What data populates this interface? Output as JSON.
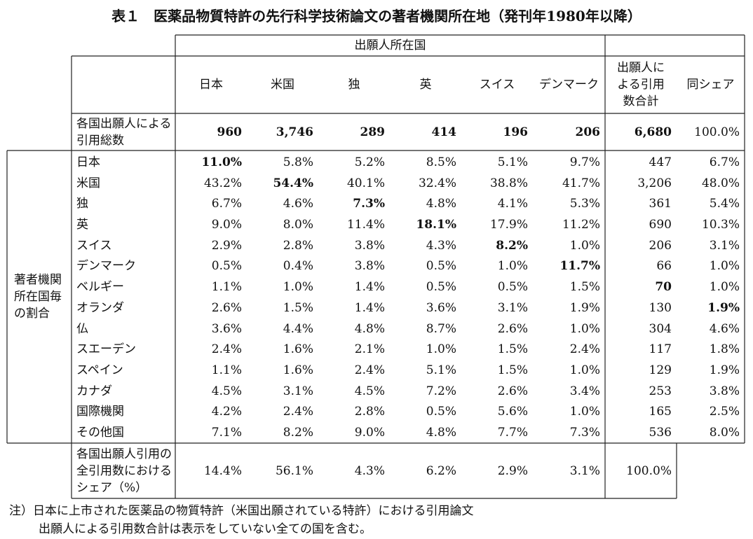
{
  "title": "表１　医薬品物質特許の先行科学技術論文の著者機関所在地（発刊年1980年以降）",
  "table": {
    "group_header": "出願人所在国",
    "columns": [
      "日本",
      "米国",
      "独",
      "英",
      "スイス",
      "デンマーク",
      "出願人による引用数合計",
      "同シェア"
    ],
    "total_row": {
      "label": "各国出願人による引用総数",
      "cells": [
        "960",
        "3,746",
        "289",
        "414",
        "196",
        "206",
        "6,680",
        "100.0%"
      ]
    },
    "row_group_label": "著者機関所在国毎の割合",
    "rows": [
      {
        "label": "日本",
        "cells": [
          "11.0%",
          "5.8%",
          "5.2%",
          "8.5%",
          "5.1%",
          "9.7%",
          "447",
          "6.7%"
        ]
      },
      {
        "label": "米国",
        "cells": [
          "43.2%",
          "54.4%",
          "40.1%",
          "32.4%",
          "38.8%",
          "41.7%",
          "3,206",
          "48.0%"
        ]
      },
      {
        "label": "独",
        "cells": [
          "6.7%",
          "4.6%",
          "7.3%",
          "4.8%",
          "4.1%",
          "5.3%",
          "361",
          "5.4%"
        ]
      },
      {
        "label": "英",
        "cells": [
          "9.0%",
          "8.0%",
          "11.4%",
          "18.1%",
          "17.9%",
          "11.2%",
          "690",
          "10.3%"
        ]
      },
      {
        "label": "スイス",
        "cells": [
          "2.9%",
          "2.8%",
          "3.8%",
          "4.3%",
          "8.2%",
          "1.0%",
          "206",
          "3.1%"
        ]
      },
      {
        "label": "デンマーク",
        "cells": [
          "0.5%",
          "0.4%",
          "3.8%",
          "0.5%",
          "1.0%",
          "11.7%",
          "66",
          "1.0%"
        ]
      },
      {
        "label": "ベルギー",
        "cells": [
          "1.1%",
          "1.0%",
          "1.4%",
          "0.5%",
          "0.5%",
          "1.5%",
          "70",
          "1.0%"
        ]
      },
      {
        "label": "オランダ",
        "cells": [
          "2.6%",
          "1.5%",
          "1.4%",
          "3.6%",
          "3.1%",
          "1.9%",
          "130",
          "1.9%"
        ]
      },
      {
        "label": "仏",
        "cells": [
          "3.6%",
          "4.4%",
          "4.8%",
          "8.7%",
          "2.6%",
          "1.0%",
          "304",
          "4.6%"
        ]
      },
      {
        "label": "スエーデン",
        "cells": [
          "2.4%",
          "1.6%",
          "2.1%",
          "1.0%",
          "1.5%",
          "2.4%",
          "117",
          "1.8%"
        ]
      },
      {
        "label": "スペイン",
        "cells": [
          "1.1%",
          "1.6%",
          "2.4%",
          "5.1%",
          "1.5%",
          "1.0%",
          "129",
          "1.9%"
        ]
      },
      {
        "label": "カナダ",
        "cells": [
          "4.5%",
          "3.1%",
          "4.5%",
          "7.2%",
          "2.6%",
          "3.4%",
          "253",
          "3.8%"
        ]
      },
      {
        "label": "国際機関",
        "cells": [
          "4.2%",
          "2.4%",
          "2.8%",
          "0.5%",
          "5.6%",
          "1.0%",
          "165",
          "2.5%"
        ]
      },
      {
        "label": "その他国",
        "cells": [
          "7.1%",
          "8.2%",
          "9.0%",
          "4.8%",
          "7.7%",
          "7.3%",
          "536",
          "8.0%"
        ]
      }
    ],
    "share_row": {
      "label": "各国出願人引用の全引用数におけるシェア（%）",
      "cells": [
        "14.4%",
        "56.1%",
        "4.3%",
        "6.2%",
        "2.9%",
        "3.1%",
        "100.0%"
      ]
    }
  },
  "notes": [
    "注）日本に上市された医薬品の物質特許（米国出願されている特許）における引用論文",
    "出願人による引用数合計は表示をしていない全ての国を含む。"
  ]
}
